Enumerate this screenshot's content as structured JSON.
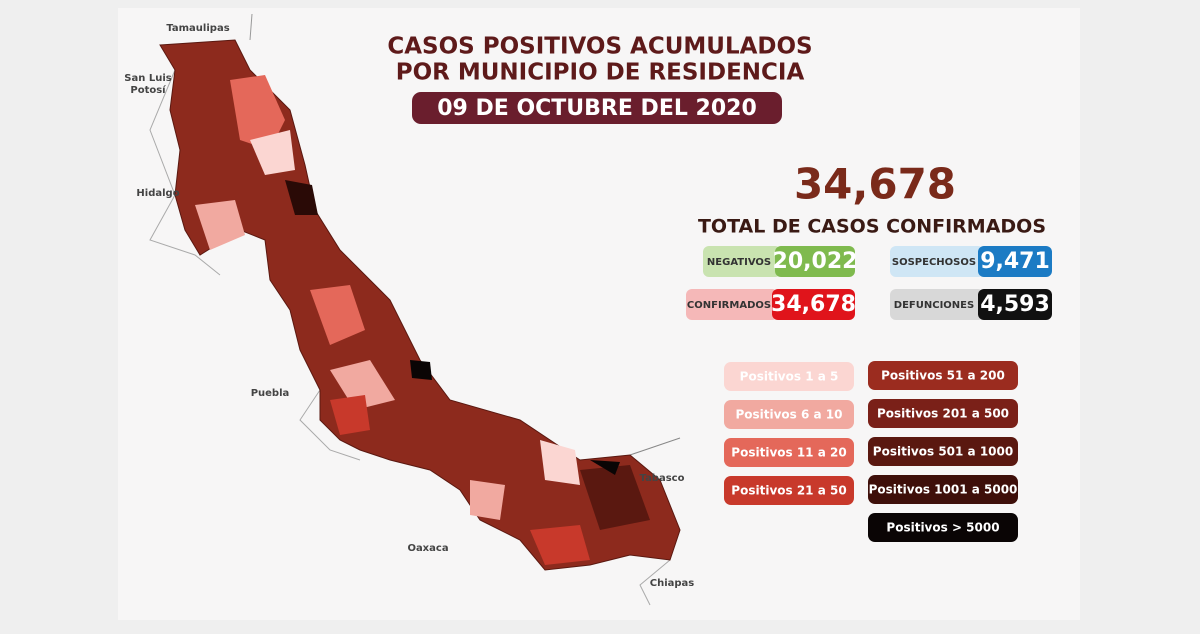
{
  "header": {
    "title_lines": [
      "CASOS POSITIVOS ACUMULADOS",
      "POR MUNICIPIO DE RESIDENCIA"
    ],
    "date": "09 DE OCTUBRE DEL 2020"
  },
  "summary": {
    "total": "34,678",
    "total_label": "TOTAL DE CASOS CONFIRMADOS"
  },
  "stats": [
    {
      "label": "NEGATIVOS",
      "value": "20,022"
    },
    {
      "label": "SOSPECHOSOS",
      "value": "9,471"
    },
    {
      "label": "CONFIRMADOS",
      "value": "34,678"
    },
    {
      "label": "DEFUNCIONES",
      "value": "4,593"
    }
  ],
  "legend": [
    "Positivos 1 a 5",
    "Positivos 6 a 10",
    "Positivos 11 a 20",
    "Positivos 21 a 50",
    "Positivos 51 a 200",
    "Positivos 201 a 500",
    "Positivos 501 a 1000",
    "Positivos 1001 a 5000",
    "Positivos > 5000"
  ],
  "map": {
    "labels": [
      {
        "lines": [
          "Tamaulipas"
        ]
      },
      {
        "lines": [
          "San Luis",
          "Potosí"
        ]
      },
      {
        "lines": [
          "Hidalgo"
        ]
      },
      {
        "lines": [
          "Puebla"
        ]
      },
      {
        "lines": [
          "Oaxaca"
        ]
      },
      {
        "lines": [
          "Tabasco"
        ]
      },
      {
        "lines": [
          "Chiapas"
        ]
      }
    ]
  }
}
